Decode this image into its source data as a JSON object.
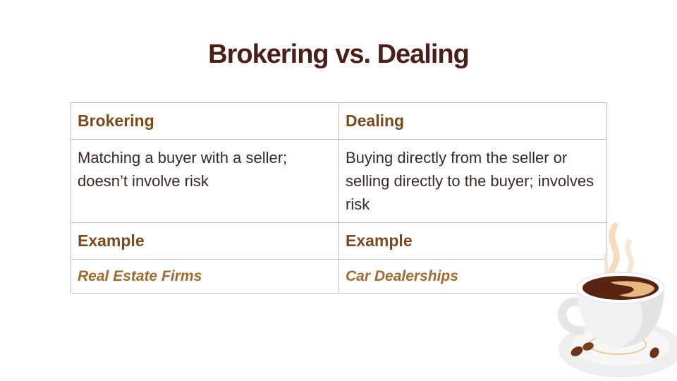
{
  "title": "Brokering vs. Dealing",
  "table": {
    "headers": [
      "Brokering",
      "Dealing"
    ],
    "descriptions": [
      "Matching a buyer with a seller; doesn’t involve risk",
      "Buying directly from the seller or selling directly to the buyer; involves risk"
    ],
    "example_labels": [
      "Example",
      "Example"
    ],
    "examples": [
      "Real Estate Firms",
      "Car Dealerships"
    ]
  },
  "colors": {
    "title": "#4a1f17",
    "header": "#7a4a1c",
    "example": "#a06a30",
    "body_text": "#3a2a26",
    "border": "#bfbfbf"
  },
  "decoration": {
    "icon": "coffee-cup-icon"
  }
}
